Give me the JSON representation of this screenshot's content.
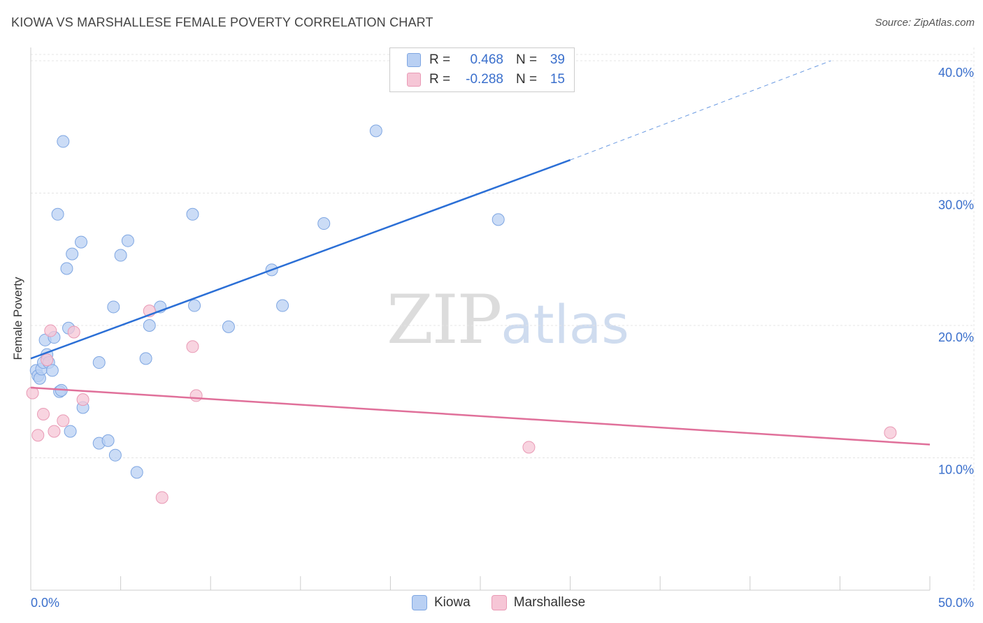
{
  "title": "KIOWA VS MARSHALLESE FEMALE POVERTY CORRELATION CHART",
  "source": "Source: ZipAtlas.com",
  "watermark": {
    "zip": "ZIP",
    "atlas": "atlas"
  },
  "colors": {
    "kiowa_fill": "#b9d0f3",
    "kiowa_stroke": "#7ea6e2",
    "kiowa_line": "#2b6fd6",
    "marsh_fill": "#f6c6d6",
    "marsh_stroke": "#e99ab5",
    "marsh_line": "#e0709a",
    "tick_label": "#3a6fcc",
    "grid": "#e4e4e4"
  },
  "legend": {
    "rows": [
      {
        "r_label": "R =",
        "r_value": "0.468",
        "n_label": "N =",
        "n_value": "39"
      },
      {
        "r_label": "R =",
        "r_value": "-0.288",
        "n_label": "N =",
        "n_value": "15"
      }
    ]
  },
  "bottom_legend": [
    {
      "name": "Kiowa"
    },
    {
      "name": "Marshallese"
    }
  ],
  "chart_data": {
    "type": "scatter",
    "title": "KIOWA VS MARSHALLESE FEMALE POVERTY CORRELATION CHART",
    "xlabel": "",
    "ylabel": "Female Poverty",
    "xlim": [
      0,
      50
    ],
    "ylim": [
      0,
      41
    ],
    "x_tick_labels": [
      "0.0%",
      "50.0%"
    ],
    "y_ticks": [
      10,
      20,
      30,
      40
    ],
    "y_tick_labels": [
      "10.0%",
      "20.0%",
      "30.0%",
      "40.0%"
    ],
    "grid": true,
    "series": [
      {
        "name": "Kiowa",
        "points": [
          [
            0.3,
            16.6
          ],
          [
            0.4,
            16.2
          ],
          [
            0.5,
            16.0
          ],
          [
            0.6,
            16.7
          ],
          [
            0.7,
            17.2
          ],
          [
            0.8,
            18.9
          ],
          [
            0.9,
            17.8
          ],
          [
            1.0,
            17.2
          ],
          [
            1.2,
            16.6
          ],
          [
            1.3,
            19.1
          ],
          [
            1.5,
            28.4
          ],
          [
            1.6,
            15.0
          ],
          [
            1.7,
            15.1
          ],
          [
            1.8,
            33.9
          ],
          [
            2.0,
            24.3
          ],
          [
            2.1,
            19.8
          ],
          [
            2.2,
            12.0
          ],
          [
            2.3,
            25.4
          ],
          [
            2.8,
            26.3
          ],
          [
            2.9,
            13.8
          ],
          [
            3.8,
            11.1
          ],
          [
            3.8,
            17.2
          ],
          [
            4.3,
            11.3
          ],
          [
            4.6,
            21.4
          ],
          [
            4.7,
            10.2
          ],
          [
            5.0,
            25.3
          ],
          [
            5.4,
            26.4
          ],
          [
            5.9,
            8.9
          ],
          [
            6.4,
            17.5
          ],
          [
            6.6,
            20.0
          ],
          [
            7.2,
            21.4
          ],
          [
            9.0,
            28.4
          ],
          [
            9.1,
            21.5
          ],
          [
            11.0,
            19.9
          ],
          [
            13.4,
            24.2
          ],
          [
            14.0,
            21.5
          ],
          [
            16.3,
            27.7
          ],
          [
            19.2,
            34.7
          ],
          [
            26.0,
            28.0
          ]
        ],
        "trend": {
          "x_start": 0.0,
          "y_start": 17.5,
          "x_solid_end": 30.0,
          "y_solid_end": 32.5,
          "x_dash_end": 44.5,
          "y_dash_end": 40.0
        }
      },
      {
        "name": "Marshallese",
        "points": [
          [
            0.1,
            14.9
          ],
          [
            0.4,
            11.7
          ],
          [
            0.7,
            13.3
          ],
          [
            0.9,
            17.4
          ],
          [
            1.1,
            19.6
          ],
          [
            1.3,
            12.0
          ],
          [
            1.8,
            12.8
          ],
          [
            2.4,
            19.5
          ],
          [
            2.9,
            14.4
          ],
          [
            6.6,
            21.1
          ],
          [
            7.3,
            7.0
          ],
          [
            9.0,
            18.4
          ],
          [
            9.2,
            14.7
          ],
          [
            27.7,
            10.8
          ],
          [
            47.8,
            11.9
          ]
        ],
        "trend": {
          "x_start": 0.0,
          "y_start": 15.3,
          "x_end": 50.0,
          "y_end": 11.0
        }
      }
    ]
  }
}
